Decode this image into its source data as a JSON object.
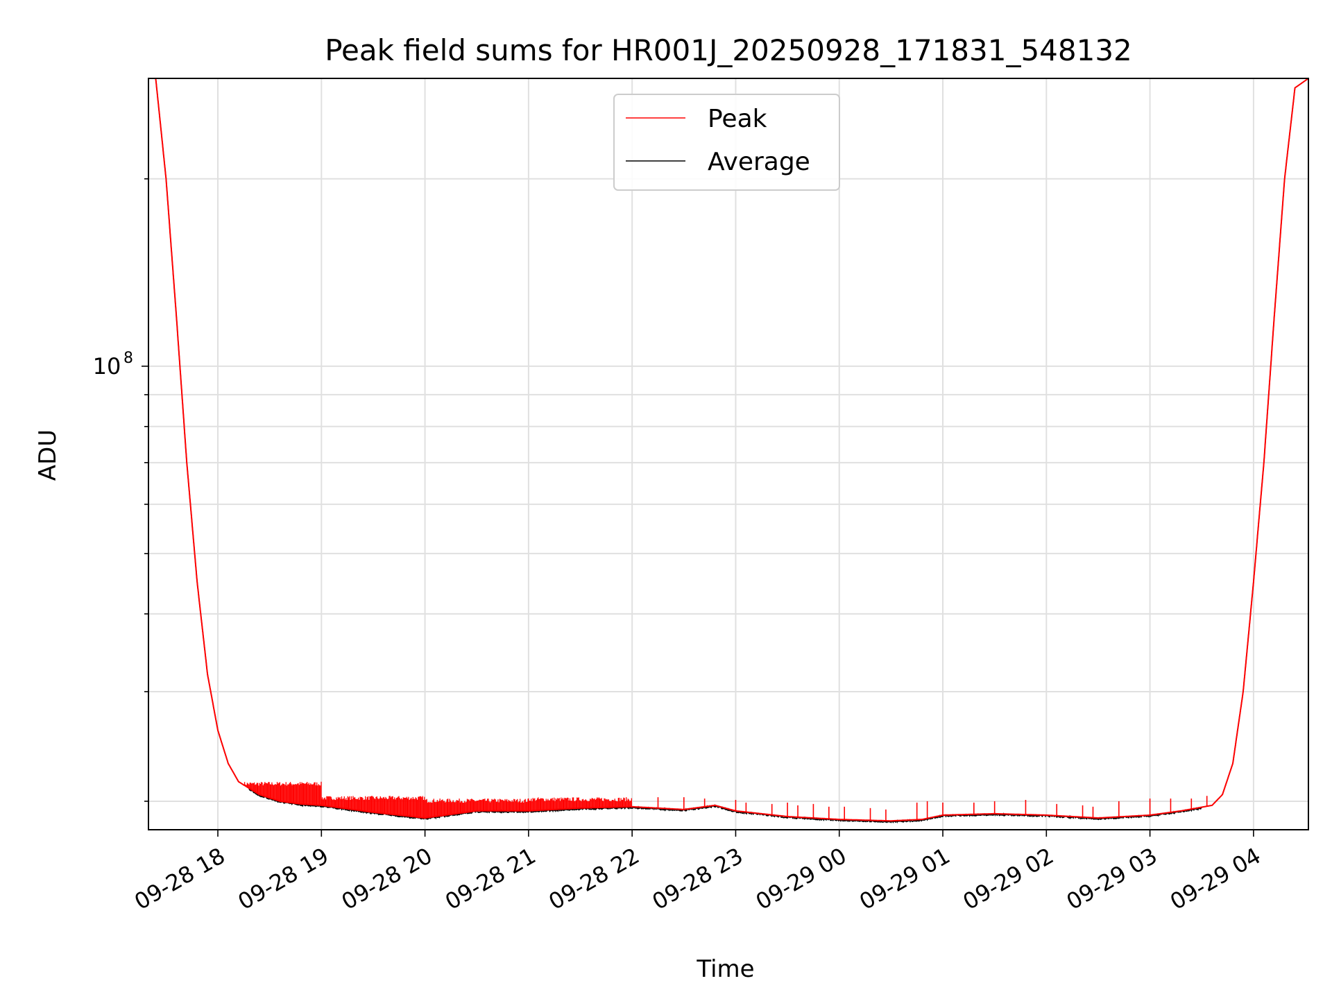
{
  "chart_data": {
    "type": "line",
    "title": "Peak field sums for HR001J_20250928_171831_548132",
    "xlabel": "Time",
    "ylabel": "ADU",
    "yscale": "log",
    "ylim": [
      18000000.0,
      290000000.0
    ],
    "xlim_hours": [
      17.33,
      28.53
    ],
    "x_tick_labels": [
      "09-28 18",
      "09-28 19",
      "09-28 20",
      "09-28 21",
      "09-28 22",
      "09-28 23",
      "09-29 00",
      "09-29 01",
      "09-29 02",
      "09-29 03",
      "09-29 04"
    ],
    "x_tick_hours": [
      18,
      19,
      20,
      21,
      22,
      23,
      24,
      25,
      26,
      27,
      28
    ],
    "y_major_ticks": [
      {
        "value": 100000000,
        "base": "10",
        "exp": "8"
      }
    ],
    "y_minor_ticks": [
      20000000,
      30000000,
      40000000,
      50000000,
      60000000,
      70000000,
      80000000,
      90000000,
      200000000
    ],
    "grid": true,
    "legend": {
      "position": "top-center",
      "entries": [
        "Peak",
        "Average"
      ]
    },
    "series": [
      {
        "name": "Average",
        "color": "#000000",
        "x_hours": [
          17.33,
          17.4,
          17.5,
          17.6,
          17.7,
          17.8,
          17.9,
          18.0,
          18.1,
          18.2,
          18.4,
          18.6,
          18.8,
          19.0,
          19.5,
          20.0,
          20.5,
          21.0,
          21.5,
          22.0,
          22.5,
          22.8,
          23.0,
          23.5,
          24.0,
          24.5,
          24.8,
          25.0,
          25.5,
          26.0,
          26.5,
          27.0,
          27.3,
          27.6,
          27.7,
          27.8,
          27.9,
          28.0,
          28.1,
          28.2,
          28.3,
          28.4,
          28.53
        ],
        "values": [
          290000000,
          290000000,
          200000000,
          120000000,
          70000000,
          45000000,
          32000000,
          26000000,
          23000000,
          21500000,
          20500000,
          20000000,
          19800000,
          19700000,
          19200000,
          18800000,
          19300000,
          19300000,
          19500000,
          19600000,
          19400000,
          19700000,
          19300000,
          18900000,
          18700000,
          18600000,
          18700000,
          19000000,
          19100000,
          19000000,
          18800000,
          19000000,
          19300000,
          19700000,
          20500000,
          23000000,
          30000000,
          45000000,
          70000000,
          120000000,
          200000000,
          280000000,
          290000000
        ]
      },
      {
        "name": "Peak",
        "color": "#ff0000",
        "spikes": [
          {
            "start": 18.25,
            "end": 19.0,
            "peak": 21500000
          },
          {
            "start": 19.0,
            "end": 20.0,
            "peak": 20400000
          },
          {
            "start": 20.0,
            "end": 21.0,
            "peak": 20200000
          },
          {
            "start": 21.0,
            "end": 22.0,
            "peak": 20300000
          }
        ],
        "sparse_spikes": [
          22.25,
          22.5,
          22.7,
          23.0,
          23.1,
          23.35,
          23.5,
          23.6,
          23.75,
          23.9,
          24.05,
          24.3,
          24.45,
          24.75,
          24.85,
          25.0,
          25.3,
          25.5,
          25.8,
          26.1,
          26.35,
          26.45,
          26.7,
          27.0,
          27.2,
          27.4,
          27.55
        ],
        "sparse_peaks": [
          20300000,
          20300000,
          20200000,
          20100000,
          19900000,
          19800000,
          19900000,
          19700000,
          19800000,
          19600000,
          19600000,
          19500000,
          19400000,
          19900000,
          20000000,
          19900000,
          19900000,
          20000000,
          20100000,
          19800000,
          19700000,
          19600000,
          20000000,
          20200000,
          20200000,
          20200000,
          20400000
        ]
      }
    ]
  }
}
